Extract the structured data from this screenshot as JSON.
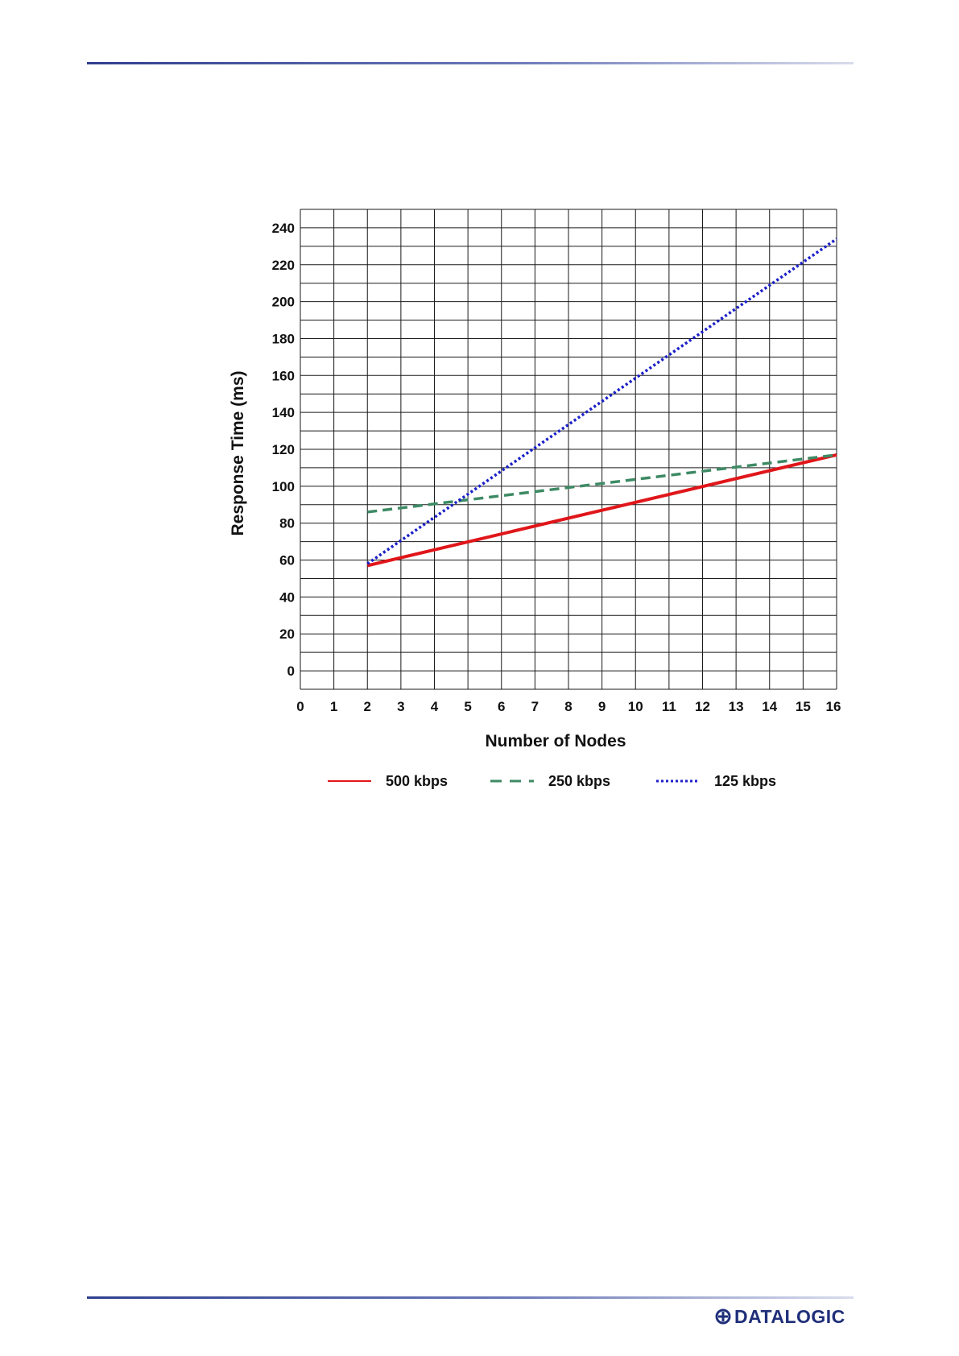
{
  "chart_data": {
    "type": "line",
    "xlabel": "Number of Nodes",
    "ylabel": "Response Time (ms)",
    "xlim": [
      0,
      16
    ],
    "ylim": [
      -10,
      250
    ],
    "x_ticks": [
      0,
      1,
      2,
      3,
      4,
      5,
      6,
      7,
      8,
      9,
      10,
      11,
      12,
      13,
      14,
      15,
      16
    ],
    "y_ticks": [
      0,
      20,
      40,
      60,
      80,
      100,
      120,
      140,
      160,
      180,
      200,
      220,
      240
    ],
    "grid": true,
    "legend_position": "bottom",
    "series": [
      {
        "name": "500 kbps",
        "color": "#e0161a",
        "style": "solid",
        "x": [
          2,
          16
        ],
        "y": [
          57,
          117
        ]
      },
      {
        "name": "250 kbps",
        "color": "#3d8a64",
        "style": "dashed",
        "x": [
          2,
          16
        ],
        "y": [
          86,
          117
        ]
      },
      {
        "name": "125 kbps",
        "color": "#1a1fc8",
        "style": "dotted",
        "x": [
          2,
          16
        ],
        "y": [
          58,
          234
        ]
      }
    ]
  },
  "footer": {
    "logo_text": "DATALOGIC",
    "logo_color": "#1f2f7a"
  }
}
